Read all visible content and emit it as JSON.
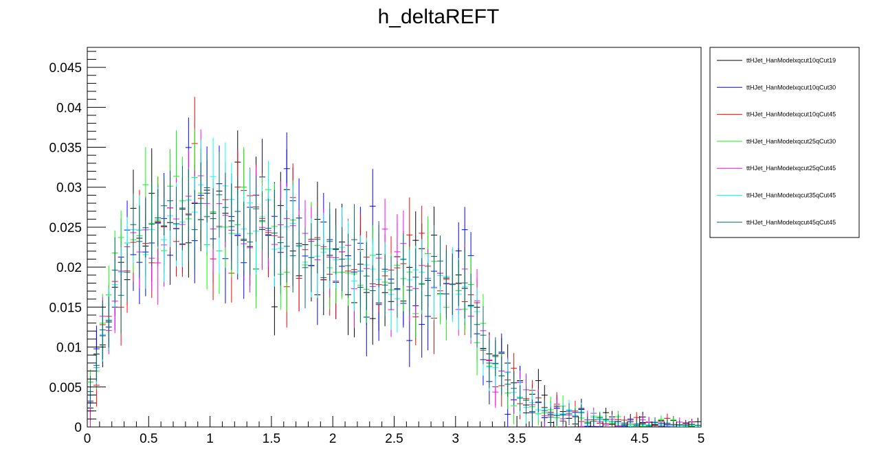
{
  "chart_data": {
    "type": "line",
    "title": "h_deltaREFT",
    "xlabel": "",
    "ylabel": "",
    "xlim": [
      0,
      5
    ],
    "ylim": [
      0,
      0.0475
    ],
    "x_ticks": [
      "0",
      "0.5",
      "1",
      "1.5",
      "2",
      "2.5",
      "3",
      "3.5",
      "4",
      "4.5",
      "5"
    ],
    "y_ticks": [
      "0",
      "0.005",
      "0.01",
      "0.015",
      "0.02",
      "0.025",
      "0.03",
      "0.035",
      "0.04",
      "0.045"
    ],
    "legend_position": "right",
    "bin_width": 0.05,
    "shape": {
      "x": [
        0,
        0.05,
        0.1,
        0.2,
        0.3,
        0.4,
        0.5,
        0.6,
        0.7,
        0.8,
        0.9,
        1.0,
        1.2,
        1.5,
        1.7,
        1.8,
        2.0,
        2.3,
        2.6,
        2.9,
        3.1,
        3.2,
        3.3,
        3.4,
        3.5,
        3.7,
        3.9,
        4.2,
        4.5,
        5.0
      ],
      "y": [
        0.0025,
        0.006,
        0.011,
        0.016,
        0.021,
        0.024,
        0.026,
        0.027,
        0.0275,
        0.028,
        0.0285,
        0.0275,
        0.026,
        0.025,
        0.024,
        0.022,
        0.021,
        0.0195,
        0.0185,
        0.018,
        0.017,
        0.012,
        0.0075,
        0.0055,
        0.0042,
        0.0025,
        0.0015,
        0.0008,
        0.0004,
        0.0002
      ]
    },
    "series": [
      {
        "name": "ttHJet_HanModelxqcut10qCut19",
        "color": "#000000",
        "noise": 0.0036,
        "seed": 11
      },
      {
        "name": "ttHJet_HanModelxqcut10qCut30",
        "color": "#0000ff",
        "noise": 0.0038,
        "seed": 23
      },
      {
        "name": "ttHJet_HanModelxqcut10qCut45",
        "color": "#ff0000",
        "noise": 0.0032,
        "seed": 37
      },
      {
        "name": "ttHJet_HanModelxqcut25qCut30",
        "color": "#00ff00",
        "noise": 0.0026,
        "seed": 41
      },
      {
        "name": "ttHJet_HanModelxqcut25qCut45",
        "color": "#ff00ff",
        "noise": 0.0026,
        "seed": 53
      },
      {
        "name": "ttHJet_HanModelxqcut35qCut45",
        "color": "#00ffff",
        "noise": 0.0018,
        "seed": 67
      },
      {
        "name": "ttHJet_HanModelxqcut45qCut45",
        "color": "#006666",
        "noise": 0.0018,
        "seed": 79
      }
    ]
  }
}
